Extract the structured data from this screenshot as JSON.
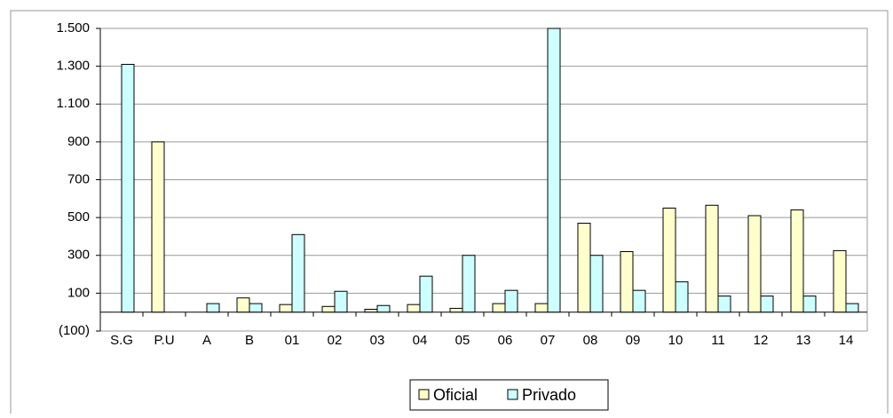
{
  "chart_data": {
    "type": "bar",
    "categories": [
      "S.G",
      "P.U",
      "A",
      "B",
      "01",
      "02",
      "03",
      "04",
      "05",
      "06",
      "07",
      "08",
      "09",
      "10",
      "11",
      "12",
      "13",
      "14"
    ],
    "series": [
      {
        "name": "Oficial",
        "color": "#ffffcc",
        "values": [
          0,
          900,
          0,
          75,
          40,
          30,
          15,
          40,
          20,
          45,
          45,
          470,
          320,
          550,
          565,
          510,
          540,
          325
        ]
      },
      {
        "name": "Privado",
        "color": "#ccffff",
        "values": [
          1310,
          0,
          45,
          45,
          410,
          110,
          35,
          190,
          300,
          115,
          1500,
          300,
          115,
          160,
          85,
          85,
          85,
          45
        ]
      }
    ],
    "ylim": [
      -100,
      1500
    ],
    "yticks": [
      {
        "value": -100,
        "label": "(100)"
      },
      100,
      300,
      500,
      700,
      900,
      {
        "value": 1100,
        "label": "1.100"
      },
      {
        "value": 1300,
        "label": "1.300"
      },
      {
        "value": 1500,
        "label": "1.500"
      }
    ],
    "grid": true,
    "legend": "bottom"
  }
}
